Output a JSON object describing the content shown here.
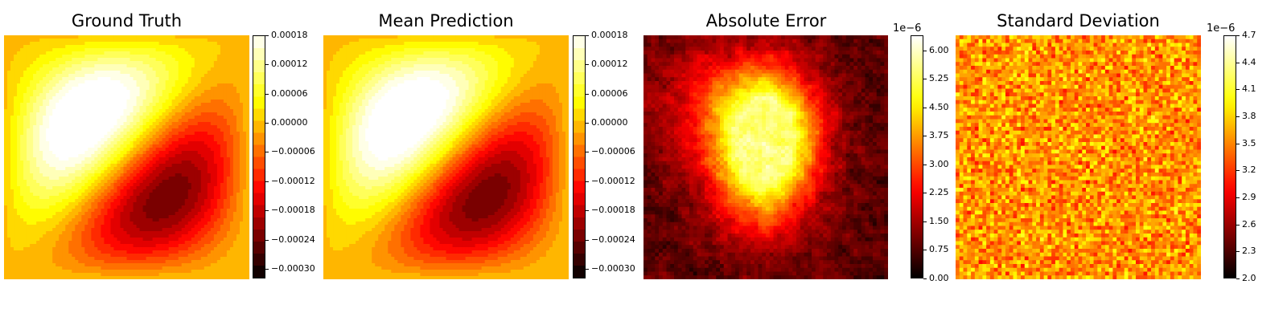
{
  "chart_data": [
    {
      "type": "heatmap",
      "title": "Ground Truth",
      "style": "filled-contour",
      "colormap": "hot",
      "colorbar": {
        "min": -0.00032,
        "max": 0.00018,
        "ticks": [
          0.00018,
          0.00012,
          6e-05,
          0.0,
          -6e-05,
          -0.00012,
          -0.00018,
          -0.00024,
          -0.0003
        ],
        "tick_labels": [
          "0.00018",
          "0.00012",
          "0.00006",
          "0.00000",
          "−0.00006",
          "−0.00012",
          "−0.00018",
          "−0.00024",
          "−0.00030"
        ],
        "multiplier": ""
      },
      "field": {
        "max_value": 0.00018,
        "max_location": [
          0.31,
          0.77
        ],
        "min_value": -0.00032,
        "min_location": [
          0.76,
          0.27
        ]
      }
    },
    {
      "type": "heatmap",
      "title": "Mean Prediction",
      "style": "filled-contour",
      "colormap": "hot",
      "colorbar": {
        "min": -0.00032,
        "max": 0.00018,
        "ticks": [
          0.00018,
          0.00012,
          6e-05,
          0.0,
          -6e-05,
          -0.00012,
          -0.00018,
          -0.00024,
          -0.0003
        ],
        "tick_labels": [
          "0.00018",
          "0.00012",
          "0.00006",
          "0.00000",
          "−0.00006",
          "−0.00012",
          "−0.00018",
          "−0.00024",
          "−0.00030"
        ],
        "multiplier": ""
      },
      "field": {
        "max_value": 0.00018,
        "max_location": [
          0.31,
          0.77
        ],
        "min_value": -0.00032,
        "min_location": [
          0.76,
          0.27
        ]
      }
    },
    {
      "type": "heatmap",
      "title": "Absolute Error",
      "style": "noisy-field",
      "colormap": "hot",
      "colorbar": {
        "min": 0.0,
        "max": 6.4,
        "ticks": [
          6.0,
          5.25,
          4.5,
          3.75,
          3.0,
          2.25,
          1.5,
          0.75,
          0.0
        ],
        "tick_labels": [
          "6.00",
          "5.25",
          "4.50",
          "3.75",
          "3.00",
          "2.25",
          "1.50",
          "0.75",
          "0.00"
        ],
        "multiplier": "1e−6"
      },
      "field": {
        "peak_value": 6.0,
        "peak_location": [
          0.52,
          0.62
        ],
        "background_value": 0.8
      }
    },
    {
      "type": "heatmap",
      "title": "Standard Deviation",
      "style": "noise",
      "colormap": "hot",
      "colorbar": {
        "min": 2.0,
        "max": 4.7,
        "ticks": [
          4.7,
          4.4,
          4.1,
          3.8,
          3.5,
          3.2,
          2.9,
          2.6,
          2.3,
          2.0
        ],
        "tick_labels": [
          "4.7",
          "4.4",
          "4.1",
          "3.8",
          "3.5",
          "3.2",
          "2.9",
          "2.6",
          "2.3",
          "2.0"
        ],
        "multiplier": "1e−6"
      },
      "field": {
        "typical_range": [
          3.0,
          4.1
        ]
      }
    }
  ]
}
